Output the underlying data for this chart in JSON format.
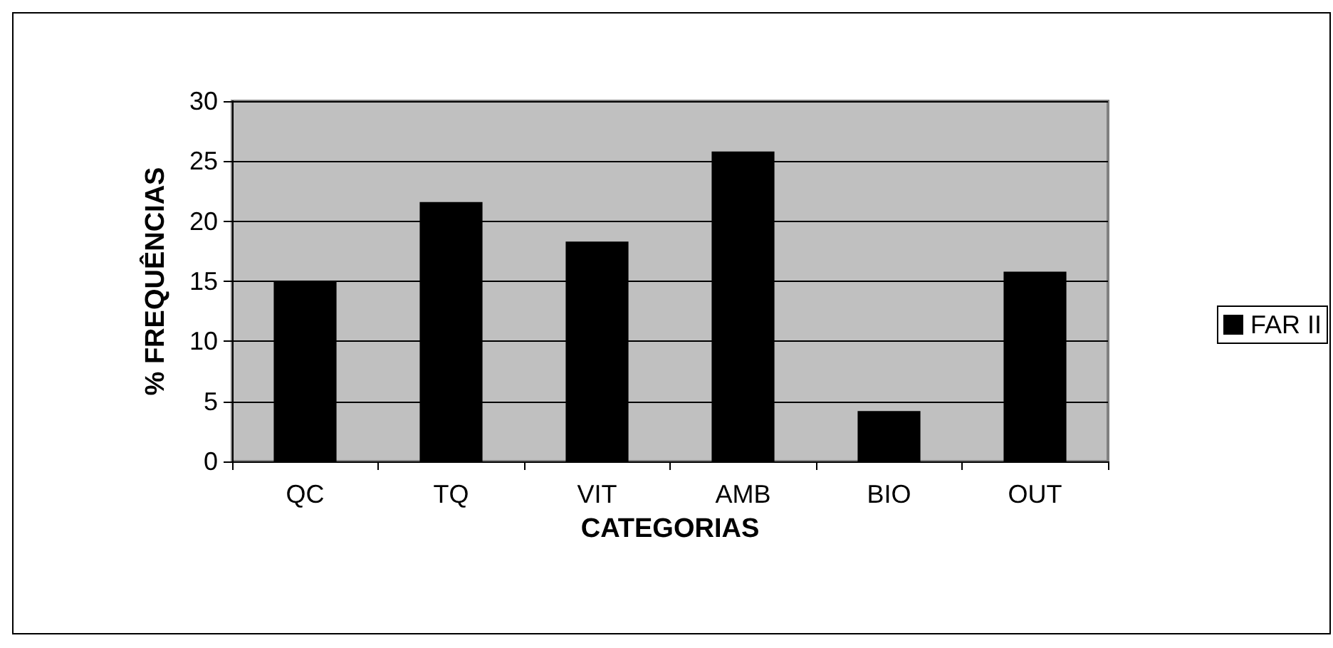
{
  "chart_data": {
    "type": "bar",
    "xlabel": "CATEGORIAS",
    "ylabel": "% FREQUÊNCIAS",
    "categories": [
      "QC",
      "TQ",
      "VIT",
      "AMB",
      "BIO",
      "OUT"
    ],
    "series": [
      {
        "name": "FAR II",
        "color": "#000000",
        "values": [
          15.0,
          21.6,
          18.3,
          25.8,
          4.2,
          15.8
        ]
      }
    ],
    "ylim": [
      0,
      30
    ],
    "yticks": [
      0,
      5,
      10,
      15,
      20,
      25,
      30
    ],
    "grid": "y",
    "legend": "right"
  }
}
